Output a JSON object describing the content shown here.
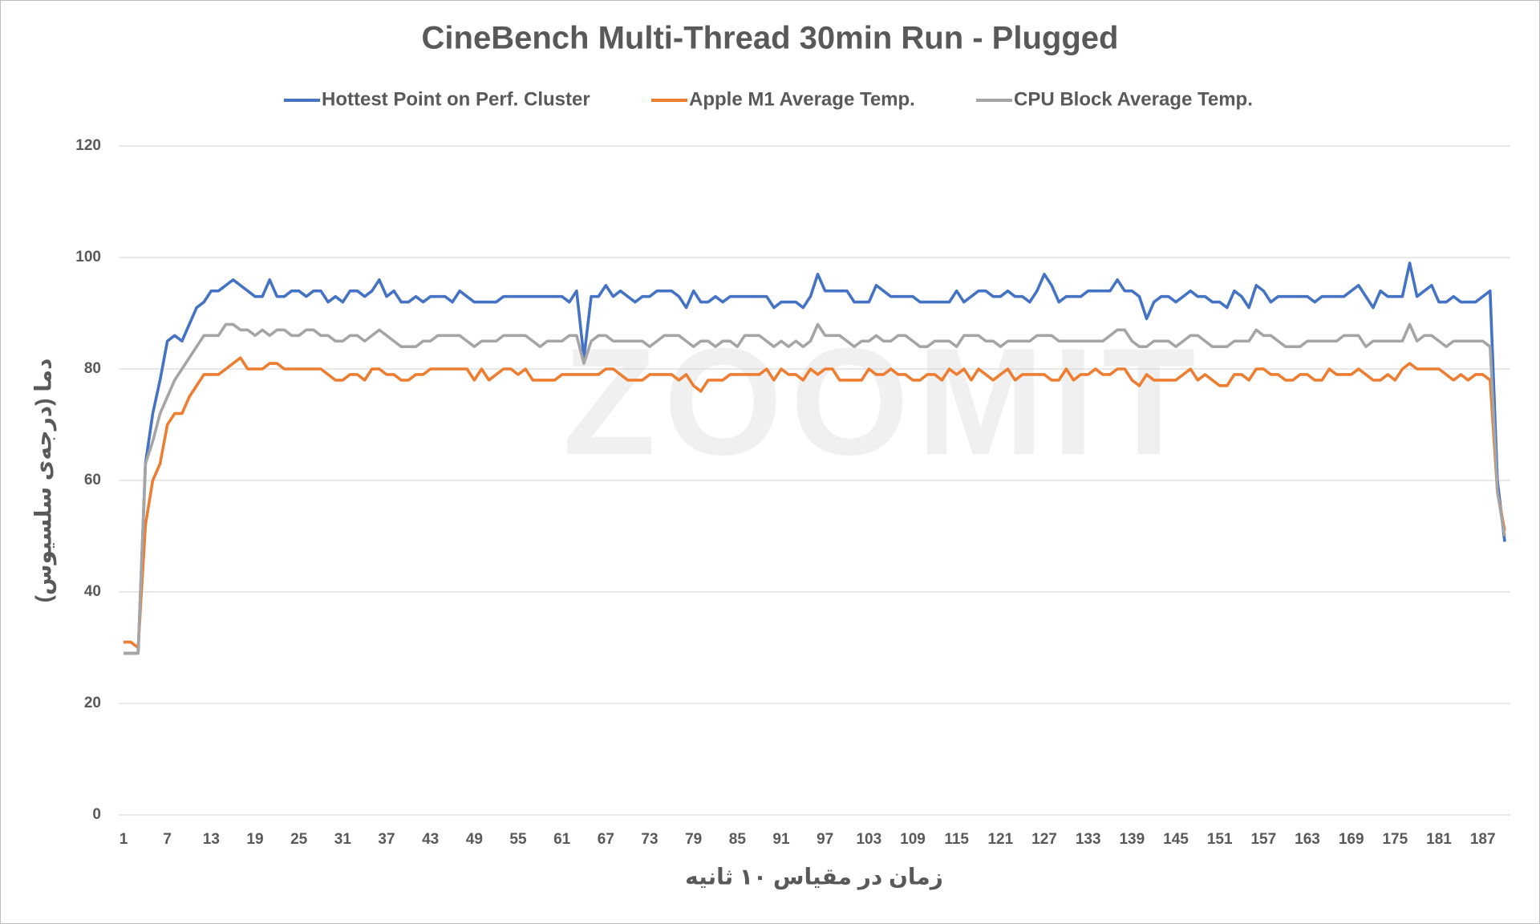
{
  "chart_data": {
    "type": "line",
    "title": "CineBench Multi-Thread 30min Run - Plugged",
    "x_label": "زمان در مقیاس ۱۰ ثانیه",
    "y_label": "دما (درجه‌ی سلسیوس)",
    "watermark": "ZOOMIT",
    "legend": "top",
    "grid": true,
    "xlim": [
      1,
      190
    ],
    "xticks": [
      1,
      7,
      13,
      19,
      25,
      31,
      37,
      43,
      49,
      55,
      61,
      67,
      73,
      79,
      85,
      91,
      97,
      103,
      109,
      115,
      121,
      127,
      133,
      139,
      145,
      151,
      157,
      163,
      169,
      175,
      181,
      187
    ],
    "ylim": [
      0,
      120
    ],
    "yticks": [
      0,
      20,
      40,
      60,
      80,
      100,
      120
    ],
    "x": [
      1,
      2,
      3,
      4,
      5,
      6,
      7,
      8,
      9,
      10,
      11,
      12,
      13,
      14,
      15,
      16,
      17,
      18,
      19,
      20,
      21,
      22,
      23,
      24,
      25,
      26,
      27,
      28,
      29,
      30,
      31,
      32,
      33,
      34,
      35,
      36,
      37,
      38,
      39,
      40,
      41,
      42,
      43,
      44,
      45,
      46,
      47,
      48,
      49,
      50,
      51,
      52,
      53,
      54,
      55,
      56,
      57,
      58,
      59,
      60,
      61,
      62,
      63,
      64,
      65,
      66,
      67,
      68,
      69,
      70,
      71,
      72,
      73,
      74,
      75,
      76,
      77,
      78,
      79,
      80,
      81,
      82,
      83,
      84,
      85,
      86,
      87,
      88,
      89,
      90,
      91,
      92,
      93,
      94,
      95,
      96,
      97,
      98,
      99,
      100,
      101,
      102,
      103,
      104,
      105,
      106,
      107,
      108,
      109,
      110,
      111,
      112,
      113,
      114,
      115,
      116,
      117,
      118,
      119,
      120,
      121,
      122,
      123,
      124,
      125,
      126,
      127,
      128,
      129,
      130,
      131,
      132,
      133,
      134,
      135,
      136,
      137,
      138,
      139,
      140,
      141,
      142,
      143,
      144,
      145,
      146,
      147,
      148,
      149,
      150,
      151,
      152,
      153,
      154,
      155,
      156,
      157,
      158,
      159,
      160,
      161,
      162,
      163,
      164,
      165,
      166,
      167,
      168,
      169,
      170,
      171,
      172,
      173,
      174,
      175,
      176,
      177,
      178,
      179,
      180,
      181,
      182,
      183,
      184,
      185,
      186,
      187,
      188,
      189,
      190
    ],
    "series": [
      {
        "name": "Hottest Point on Perf. Cluster",
        "color": "#4472c4",
        "values": [
          29,
          29,
          29,
          63,
          72,
          78,
          85,
          86,
          85,
          88,
          91,
          92,
          94,
          94,
          95,
          96,
          95,
          94,
          93,
          93,
          96,
          93,
          93,
          94,
          94,
          93,
          94,
          94,
          92,
          93,
          92,
          94,
          94,
          93,
          94,
          96,
          93,
          94,
          92,
          92,
          93,
          92,
          93,
          93,
          93,
          92,
          94,
          93,
          92,
          92,
          92,
          92,
          93,
          93,
          93,
          93,
          93,
          93,
          93,
          93,
          93,
          92,
          94,
          82,
          93,
          93,
          95,
          93,
          94,
          93,
          92,
          93,
          93,
          94,
          94,
          94,
          93,
          91,
          94,
          92,
          92,
          93,
          92,
          93,
          93,
          93,
          93,
          93,
          93,
          91,
          92,
          92,
          92,
          91,
          93,
          97,
          94,
          94,
          94,
          94,
          92,
          92,
          92,
          95,
          94,
          93,
          93,
          93,
          93,
          92,
          92,
          92,
          92,
          92,
          94,
          92,
          93,
          94,
          94,
          93,
          93,
          94,
          93,
          93,
          92,
          94,
          97,
          95,
          92,
          93,
          93,
          93,
          94,
          94,
          94,
          94,
          96,
          94,
          94,
          93,
          89,
          92,
          93,
          93,
          92,
          93,
          94,
          93,
          93,
          92,
          92,
          91,
          94,
          93,
          91,
          95,
          94,
          92,
          93,
          93,
          93,
          93,
          93,
          92,
          93,
          93,
          93,
          93,
          94,
          95,
          93,
          91,
          94,
          93,
          93,
          93,
          99,
          93,
          94,
          95,
          92,
          92,
          93,
          92,
          92,
          92,
          93,
          94,
          60,
          49
        ]
      },
      {
        "name": "Apple M1 Average Temp.",
        "color": "#ed7d31",
        "values": [
          31,
          31,
          30,
          52,
          60,
          63,
          70,
          72,
          72,
          75,
          77,
          79,
          79,
          79,
          80,
          81,
          82,
          80,
          80,
          80,
          81,
          81,
          80,
          80,
          80,
          80,
          80,
          80,
          79,
          78,
          78,
          79,
          79,
          78,
          80,
          80,
          79,
          79,
          78,
          78,
          79,
          79,
          80,
          80,
          80,
          80,
          80,
          80,
          78,
          80,
          78,
          79,
          80,
          80,
          79,
          80,
          78,
          78,
          78,
          78,
          79,
          79,
          79,
          79,
          79,
          79,
          80,
          80,
          79,
          78,
          78,
          78,
          79,
          79,
          79,
          79,
          78,
          79,
          77,
          76,
          78,
          78,
          78,
          79,
          79,
          79,
          79,
          79,
          80,
          78,
          80,
          79,
          79,
          78,
          80,
          79,
          80,
          80,
          78,
          78,
          78,
          78,
          80,
          79,
          79,
          80,
          79,
          79,
          78,
          78,
          79,
          79,
          78,
          80,
          79,
          80,
          78,
          80,
          79,
          78,
          79,
          80,
          78,
          79,
          79,
          79,
          79,
          78,
          78,
          80,
          78,
          79,
          79,
          80,
          79,
          79,
          80,
          80,
          78,
          77,
          79,
          78,
          78,
          78,
          78,
          79,
          80,
          78,
          79,
          78,
          77,
          77,
          79,
          79,
          78,
          80,
          80,
          79,
          79,
          78,
          78,
          79,
          79,
          78,
          78,
          80,
          79,
          79,
          79,
          80,
          79,
          78,
          78,
          79,
          78,
          80,
          81,
          80,
          80,
          80,
          80,
          79,
          78,
          79,
          78,
          79,
          79,
          78,
          58,
          51
        ]
      },
      {
        "name": "CPU Block Average Temp.",
        "color": "#a5a5a5",
        "values": [
          29,
          29,
          29,
          63,
          67,
          72,
          75,
          78,
          80,
          82,
          84,
          86,
          86,
          86,
          88,
          88,
          87,
          87,
          86,
          87,
          86,
          87,
          87,
          86,
          86,
          87,
          87,
          86,
          86,
          85,
          85,
          86,
          86,
          85,
          86,
          87,
          86,
          85,
          84,
          84,
          84,
          85,
          85,
          86,
          86,
          86,
          86,
          85,
          84,
          85,
          85,
          85,
          86,
          86,
          86,
          86,
          85,
          84,
          85,
          85,
          85,
          86,
          86,
          81,
          85,
          86,
          86,
          85,
          85,
          85,
          85,
          85,
          84,
          85,
          86,
          86,
          86,
          85,
          84,
          85,
          85,
          84,
          85,
          85,
          84,
          86,
          86,
          86,
          85,
          84,
          85,
          84,
          85,
          84,
          85,
          88,
          86,
          86,
          86,
          85,
          84,
          85,
          85,
          86,
          85,
          85,
          86,
          86,
          85,
          84,
          84,
          85,
          85,
          85,
          84,
          86,
          86,
          86,
          85,
          85,
          84,
          85,
          85,
          85,
          85,
          86,
          86,
          86,
          85,
          85,
          85,
          85,
          85,
          85,
          85,
          86,
          87,
          87,
          85,
          84,
          84,
          85,
          85,
          85,
          84,
          85,
          86,
          86,
          85,
          84,
          84,
          84,
          85,
          85,
          85,
          87,
          86,
          86,
          85,
          84,
          84,
          84,
          85,
          85,
          85,
          85,
          85,
          86,
          86,
          86,
          84,
          85,
          85,
          85,
          85,
          85,
          88,
          85,
          86,
          86,
          85,
          84,
          85,
          85,
          85,
          85,
          85,
          84,
          58,
          50
        ]
      }
    ]
  }
}
